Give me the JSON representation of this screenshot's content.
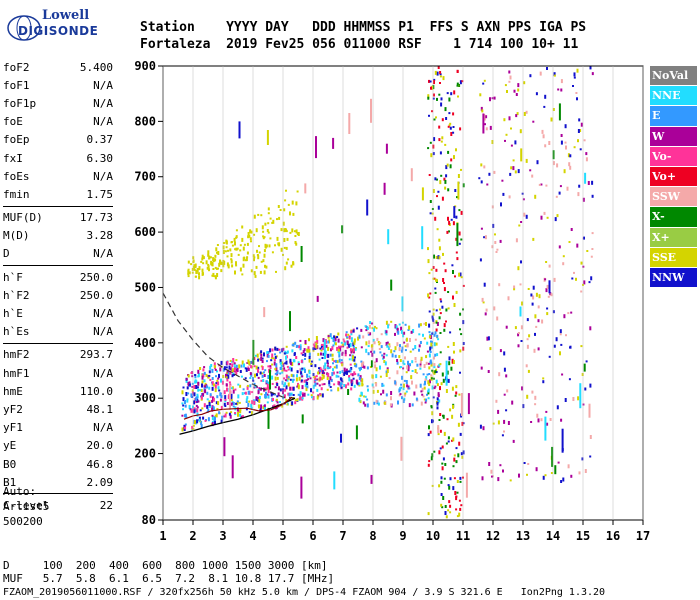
{
  "brand": {
    "line1": "Lowell",
    "line2": "DIGISONDE"
  },
  "header": {
    "row1": "Station    YYYY DAY   DDD HHMMSS P1  FFS S AXN PPS IGA PS",
    "row2": "Fortaleza  2019 Fev25 056 011000 RSF    1 714 100 10+ 11"
  },
  "params": [
    [
      {
        "k": "foF2",
        "v": "5.400"
      },
      {
        "k": "foF1",
        "v": "N/A"
      },
      {
        "k": "foF1p",
        "v": "N/A"
      },
      {
        "k": "foE",
        "v": "N/A"
      },
      {
        "k": "foEp",
        "v": "0.37"
      },
      {
        "k": "fxI",
        "v": "6.30"
      },
      {
        "k": "foEs",
        "v": "N/A"
      },
      {
        "k": "fmin",
        "v": "1.75"
      }
    ],
    [
      {
        "k": "MUF(D)",
        "v": "17.73"
      },
      {
        "k": "M(D)",
        "v": "3.28"
      },
      {
        "k": "D",
        "v": "N/A"
      }
    ],
    [
      {
        "k": "h`F",
        "v": "250.0"
      },
      {
        "k": "h`F2",
        "v": "250.0"
      },
      {
        "k": "h`E",
        "v": "N/A"
      },
      {
        "k": "h`Es",
        "v": "N/A"
      }
    ],
    [
      {
        "k": "hmF2",
        "v": "293.7"
      },
      {
        "k": "hmF1",
        "v": "N/A"
      },
      {
        "k": "hmE",
        "v": "110.0"
      },
      {
        "k": "yF2",
        "v": "48.1"
      },
      {
        "k": "yF1",
        "v": "N/A"
      },
      {
        "k": "yE",
        "v": "20.0"
      },
      {
        "k": "B0",
        "v": "46.8"
      },
      {
        "k": "B1",
        "v": "2.09"
      }
    ],
    [
      {
        "k": "C-level",
        "v": "22"
      }
    ]
  ],
  "auto": {
    "l1": "Auto:",
    "l2": "Artist5",
    "l3": "500200"
  },
  "footer": {
    "d_line": "D     100  200  400  600  800 1000 1500 3000 [km]",
    "muf_line": "MUF   5.7  5.8  6.1  6.5  7.2  8.1 10.8 17.7 [MHz]",
    "file_line": "FZAOM_2019056011000.RSF / 320fx256h 50 kHz 5.0 km / DPS-4 FZAOM 904 / 3.9 S 321.6 E   Ion2Png 1.3.20"
  },
  "legend": [
    {
      "label": "NoVal",
      "color": "#808080"
    },
    {
      "label": "NNE",
      "color": "#22ddff"
    },
    {
      "label": "E",
      "color": "#3399ff"
    },
    {
      "label": "W",
      "color": "#aa0099"
    },
    {
      "label": "Vo-",
      "color": "#ff3399"
    },
    {
      "label": "Vo+",
      "color": "#ee0022"
    },
    {
      "label": "SSW",
      "color": "#f4a9a9"
    },
    {
      "label": "X-",
      "color": "#008800"
    },
    {
      "label": "X+",
      "color": "#99cc44"
    },
    {
      "label": "SSE",
      "color": "#d4d400"
    },
    {
      "label": "NNW",
      "color": "#1111cc"
    }
  ],
  "chart_data": {
    "type": "scatter",
    "xlabel": "",
    "ylabel": "",
    "xlim": [
      1,
      17
    ],
    "ylim": [
      80,
      900
    ],
    "xticks": [
      1,
      2,
      3,
      4,
      5,
      6,
      7,
      8,
      9,
      10,
      11,
      12,
      13,
      14,
      15,
      16,
      17
    ],
    "yticks": [
      80,
      200,
      300,
      400,
      500,
      600,
      700,
      800,
      900
    ],
    "profile_curve": {
      "x": [
        1.55,
        2.0,
        2.5,
        3.0,
        3.5,
        4.0,
        4.5,
        5.0,
        5.4
      ],
      "y": [
        235,
        241,
        249,
        256,
        262,
        270,
        280,
        290,
        300
      ]
    },
    "trace_curve": {
      "x": [
        1.7,
        2.0,
        2.3,
        2.6,
        3.0,
        3.4,
        3.8,
        4.2,
        4.6,
        5.0,
        5.3
      ],
      "y": [
        262,
        268,
        271,
        277,
        280,
        281,
        282,
        277,
        279,
        289,
        302
      ]
    },
    "dashed_curve": {
      "x": [
        1.0,
        1.5,
        2.0,
        2.5,
        3.0,
        3.5,
        4.0,
        4.5,
        5.0,
        5.4
      ],
      "y": [
        490,
        440,
        405,
        375,
        355,
        340,
        325,
        313,
        302,
        300
      ]
    },
    "echo_regions": [
      {
        "name": "F-trace",
        "x": [
          1.6,
          7.5
        ],
        "y": [
          240,
          380
        ],
        "colors": [
          "#aa0099",
          "#3399ff",
          "#22ddff",
          "#ff3399",
          "#d4d400",
          "#1111cc"
        ]
      },
      {
        "name": "oblique",
        "x": [
          1.8,
          5.5
        ],
        "y": [
          510,
          700
        ],
        "colors": [
          "#d4d400"
        ]
      },
      {
        "name": "spread",
        "x": [
          7.5,
          10.2
        ],
        "y": [
          290,
          440
        ],
        "colors": [
          "#22ddff",
          "#3399ff",
          "#f4a9a9",
          "#d4d400",
          "#aa0099"
        ]
      },
      {
        "name": "band-10",
        "x": [
          9.8,
          11.0
        ],
        "y": [
          80,
          900
        ],
        "colors": [
          "#d4d400",
          "#008800",
          "#1111cc",
          "#ee0022"
        ]
      },
      {
        "name": "band-12-15",
        "x": [
          11.5,
          15.3
        ],
        "y": [
          150,
          900
        ],
        "colors": [
          "#f4a9a9",
          "#1111cc",
          "#d4d400",
          "#aa0099"
        ]
      }
    ]
  }
}
